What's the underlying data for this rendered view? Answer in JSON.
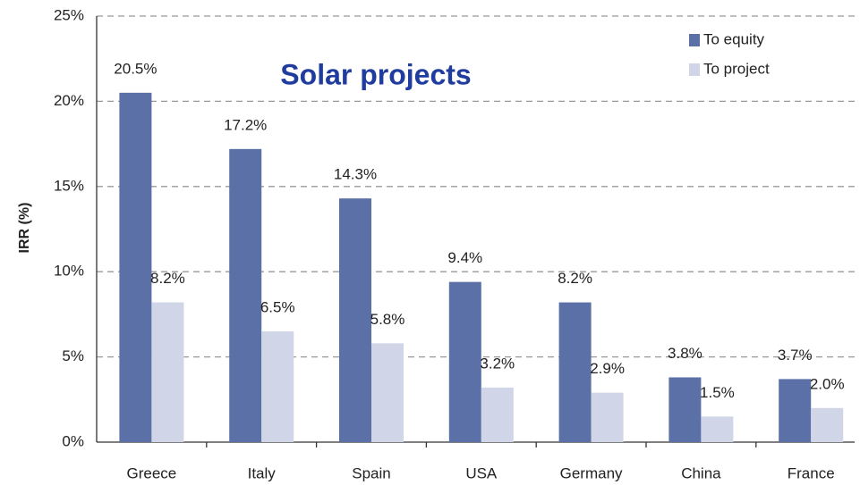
{
  "chart_data": {
    "type": "bar",
    "title": "Solar projects",
    "y_label": "IRR (%)",
    "categories": [
      "Greece",
      "Italy",
      "Spain",
      "USA",
      "Germany",
      "China",
      "France"
    ],
    "series": [
      {
        "name": "To equity",
        "color": "#5b70a6",
        "values": [
          20.5,
          17.2,
          14.3,
          9.4,
          8.2,
          3.8,
          3.7
        ],
        "value_labels": [
          "20.5%",
          "17.2%",
          "14.3%",
          "9.4%",
          "8.2%",
          "3.8%",
          "3.7%"
        ]
      },
      {
        "name": "To project",
        "color": "#d0d5e8",
        "values": [
          8.2,
          6.5,
          5.8,
          3.2,
          2.9,
          1.5,
          2.0
        ],
        "value_labels": [
          "8.2%",
          "6.5%",
          "5.8%",
          "3.2%",
          "2.9%",
          "1.5%",
          "2.0%"
        ]
      }
    ],
    "ylim": [
      0,
      25
    ],
    "yticks": [
      {
        "value": 0,
        "label": "0%"
      },
      {
        "value": 5,
        "label": "5%"
      },
      {
        "value": 10,
        "label": "10%"
      },
      {
        "value": 15,
        "label": "15%"
      },
      {
        "value": 20,
        "label": "20%"
      },
      {
        "value": 25,
        "label": "25%"
      }
    ],
    "grid": true,
    "legend": "top-right"
  }
}
